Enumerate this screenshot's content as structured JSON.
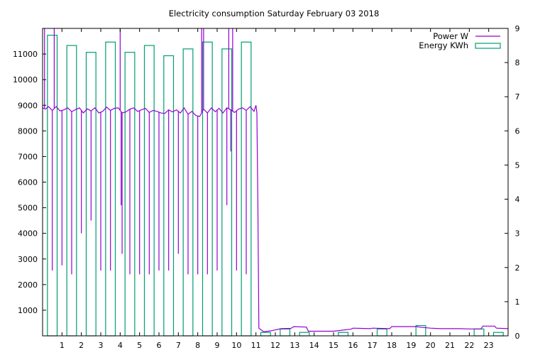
{
  "chart_data": {
    "type": "bar+line",
    "title": "Electricity consumption Saturday February 03 2018",
    "xlabel": "",
    "ylabel_left": "",
    "ylabel_right": "",
    "x_ticks": [
      1,
      2,
      3,
      4,
      5,
      6,
      7,
      8,
      9,
      10,
      11,
      12,
      13,
      14,
      15,
      16,
      17,
      18,
      19,
      20,
      21,
      22,
      23
    ],
    "xlim": [
      0,
      24
    ],
    "y_left_ticks": [
      1000,
      2000,
      3000,
      4000,
      5000,
      6000,
      7000,
      8000,
      9000,
      10000,
      11000
    ],
    "ylim_left": [
      0,
      12000
    ],
    "y_right_ticks": [
      0,
      1,
      2,
      3,
      4,
      5,
      6,
      7,
      8,
      9
    ],
    "ylim_right": [
      0,
      9
    ],
    "legend_position": "top-right",
    "colors": {
      "power": "#9400d3",
      "energy": "#009e73"
    },
    "series": [
      {
        "name": "Power W",
        "axis": "left",
        "style": "line",
        "baseline": [
          [
            0.0,
            8900
          ],
          [
            0.15,
            8850
          ],
          [
            0.3,
            8950
          ],
          [
            0.5,
            8800
          ],
          [
            0.7,
            8950
          ],
          [
            0.9,
            8780
          ],
          [
            1.1,
            8820
          ],
          [
            1.3,
            8900
          ],
          [
            1.5,
            8750
          ],
          [
            1.7,
            8830
          ],
          [
            1.9,
            8900
          ],
          [
            2.1,
            8700
          ],
          [
            2.3,
            8860
          ],
          [
            2.5,
            8780
          ],
          [
            2.7,
            8900
          ],
          [
            2.9,
            8700
          ],
          [
            3.1,
            8760
          ],
          [
            3.3,
            8930
          ],
          [
            3.5,
            8800
          ],
          [
            3.7,
            8880
          ],
          [
            3.9,
            8900
          ],
          [
            4.1,
            8700
          ],
          [
            4.3,
            8740
          ],
          [
            4.5,
            8850
          ],
          [
            4.7,
            8900
          ],
          [
            4.9,
            8760
          ],
          [
            5.1,
            8820
          ],
          [
            5.3,
            8880
          ],
          [
            5.5,
            8720
          ],
          [
            5.7,
            8800
          ],
          [
            5.9,
            8760
          ],
          [
            6.1,
            8700
          ],
          [
            6.3,
            8680
          ],
          [
            6.5,
            8820
          ],
          [
            6.7,
            8740
          ],
          [
            6.9,
            8820
          ],
          [
            7.1,
            8700
          ],
          [
            7.3,
            8900
          ],
          [
            7.5,
            8650
          ],
          [
            7.7,
            8760
          ],
          [
            7.9,
            8600
          ],
          [
            8.1,
            8560
          ],
          [
            8.3,
            8850
          ],
          [
            8.5,
            8700
          ],
          [
            8.7,
            8900
          ],
          [
            8.9,
            8750
          ],
          [
            9.1,
            8880
          ],
          [
            9.3,
            8700
          ],
          [
            9.5,
            8900
          ],
          [
            9.7,
            8820
          ],
          [
            9.9,
            8720
          ],
          [
            10.1,
            8850
          ],
          [
            10.3,
            8900
          ],
          [
            10.5,
            8800
          ],
          [
            10.7,
            8950
          ],
          [
            10.9,
            8760
          ],
          [
            11.0,
            9000
          ],
          [
            11.05,
            8700
          ],
          [
            11.1,
            5100
          ],
          [
            11.15,
            300
          ],
          [
            11.4,
            160
          ],
          [
            11.8,
            200
          ],
          [
            12.3,
            280
          ],
          [
            12.8,
            290
          ],
          [
            12.95,
            360
          ],
          [
            13.6,
            340
          ],
          [
            13.7,
            180
          ],
          [
            15.0,
            180
          ],
          [
            15.9,
            260
          ],
          [
            16.0,
            300
          ],
          [
            16.9,
            280
          ],
          [
            17.0,
            300
          ],
          [
            17.9,
            280
          ],
          [
            18.0,
            360
          ],
          [
            19.0,
            360
          ],
          [
            19.3,
            360
          ],
          [
            19.4,
            340
          ],
          [
            20.0,
            300
          ],
          [
            20.5,
            280
          ],
          [
            21.5,
            280
          ],
          [
            22.0,
            270
          ],
          [
            22.6,
            270
          ],
          [
            22.7,
            380
          ],
          [
            23.3,
            380
          ],
          [
            23.4,
            300
          ],
          [
            24.0,
            280
          ]
        ],
        "spikes": [
          [
            0.1,
            12000
          ],
          [
            0.5,
            2550
          ],
          [
            0.6,
            12000
          ],
          [
            1.0,
            2750
          ],
          [
            1.5,
            2400
          ],
          [
            2.0,
            4000
          ],
          [
            2.5,
            4500
          ],
          [
            3.0,
            2550
          ],
          [
            3.5,
            2550
          ],
          [
            4.0,
            12000
          ],
          [
            4.05,
            5100
          ],
          [
            4.1,
            3200
          ],
          [
            4.5,
            2400
          ],
          [
            5.0,
            2400
          ],
          [
            5.5,
            2400
          ],
          [
            6.0,
            2550
          ],
          [
            6.5,
            2550
          ],
          [
            7.0,
            3200
          ],
          [
            7.5,
            2400
          ],
          [
            8.0,
            2400
          ],
          [
            8.2,
            12000
          ],
          [
            8.3,
            12000
          ],
          [
            8.5,
            2400
          ],
          [
            9.0,
            2550
          ],
          [
            9.5,
            5100
          ],
          [
            9.6,
            12000
          ],
          [
            9.7,
            7200
          ],
          [
            9.8,
            12000
          ],
          [
            10.0,
            2550
          ],
          [
            10.5,
            2400
          ]
        ]
      },
      {
        "name": "Energy KWh",
        "axis": "right",
        "style": "boxes",
        "x": [
          0,
          1,
          2,
          3,
          4,
          5,
          6,
          7,
          8,
          9,
          10,
          11,
          12,
          13,
          14,
          15,
          16,
          17,
          18,
          19,
          20,
          21,
          22,
          23
        ],
        "values": [
          8.8,
          8.5,
          8.3,
          8.6,
          8.3,
          8.5,
          8.2,
          8.4,
          8.6,
          8.4,
          8.6,
          0.1,
          0.2,
          0.1,
          0.0,
          0.1,
          0.0,
          0.2,
          0.0,
          0.3,
          0.0,
          0.0,
          0.2,
          0.1
        ]
      }
    ]
  }
}
